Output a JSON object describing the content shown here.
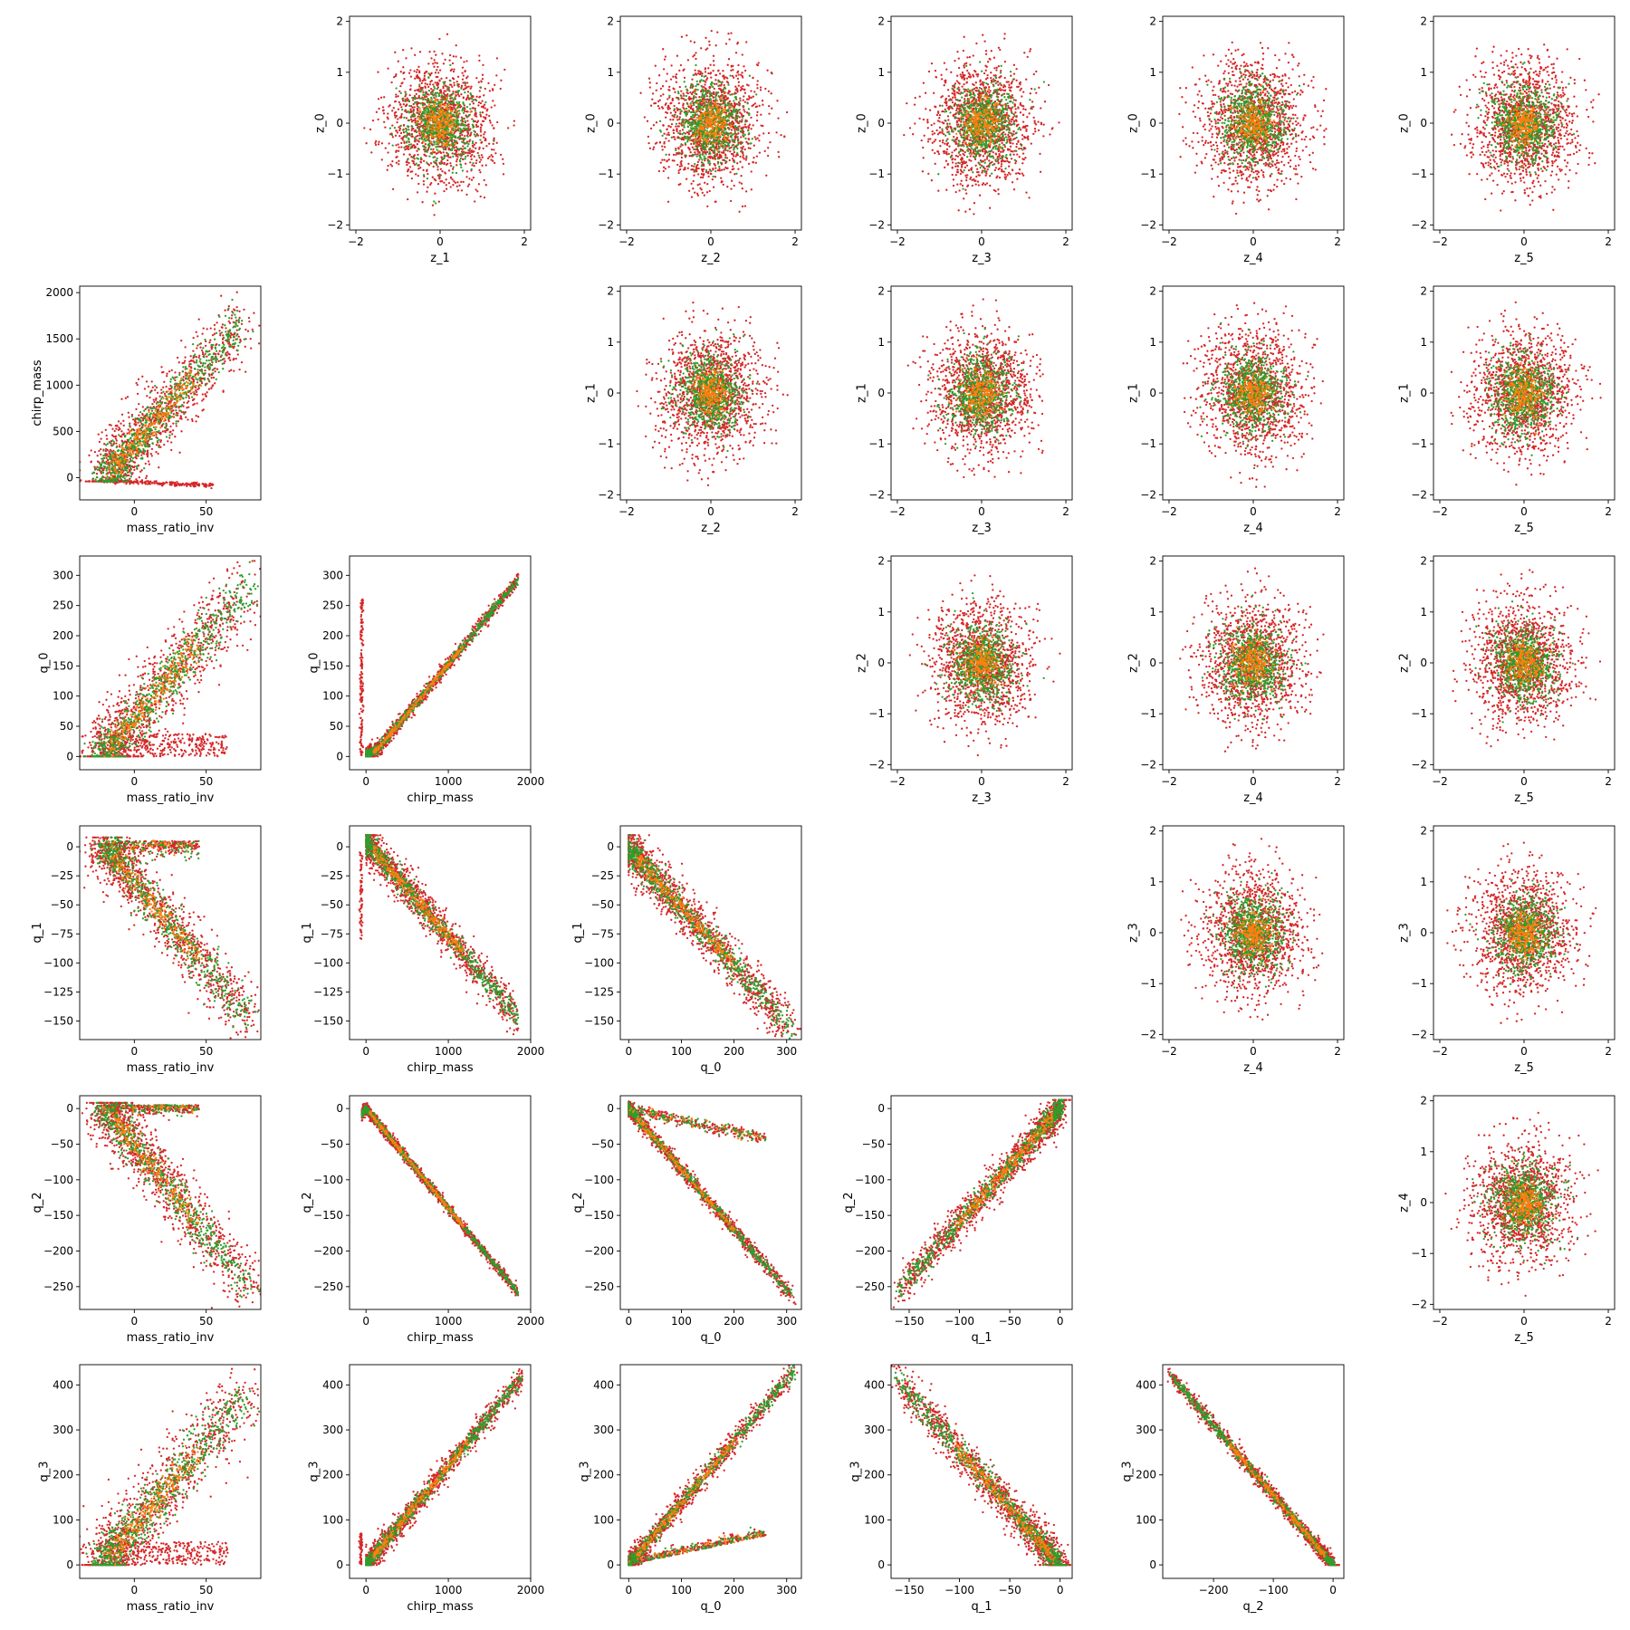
{
  "colors": {
    "red": "#d62728",
    "green": "#2ca02c",
    "orange": "#ff7f0e"
  },
  "series": [
    {
      "color": "#d62728"
    },
    {
      "color": "#2ca02c"
    },
    {
      "color": "#ff7f0e"
    }
  ],
  "chart_data": [
    {
      "type": "scatter",
      "row": 0,
      "col": 1,
      "xlabel": "z_1",
      "ylabel": "z_0",
      "kind": "circle",
      "xlim": [
        -2.15,
        2.15
      ],
      "ylim": [
        -2.1,
        2.1
      ],
      "xticks": [
        -2,
        0,
        2
      ],
      "yticks": [
        -2,
        -1,
        0,
        1,
        2
      ]
    },
    {
      "type": "scatter",
      "row": 0,
      "col": 2,
      "xlabel": "z_2",
      "ylabel": "z_0",
      "kind": "circle",
      "xlim": [
        -2.15,
        2.15
      ],
      "ylim": [
        -2.1,
        2.1
      ],
      "xticks": [
        -2,
        0,
        2
      ],
      "yticks": [
        -2,
        -1,
        0,
        1,
        2
      ]
    },
    {
      "type": "scatter",
      "row": 0,
      "col": 3,
      "xlabel": "z_3",
      "ylabel": "z_0",
      "kind": "circle",
      "xlim": [
        -2.15,
        2.15
      ],
      "ylim": [
        -2.1,
        2.1
      ],
      "xticks": [
        -2,
        0,
        2
      ],
      "yticks": [
        -2,
        -1,
        0,
        1,
        2
      ]
    },
    {
      "type": "scatter",
      "row": 0,
      "col": 4,
      "xlabel": "z_4",
      "ylabel": "z_0",
      "kind": "circle",
      "xlim": [
        -2.15,
        2.15
      ],
      "ylim": [
        -2.1,
        2.1
      ],
      "xticks": [
        -2,
        0,
        2
      ],
      "yticks": [
        -2,
        -1,
        0,
        1,
        2
      ]
    },
    {
      "type": "scatter",
      "row": 0,
      "col": 5,
      "xlabel": "z_5",
      "ylabel": "z_0",
      "kind": "circle",
      "xlim": [
        -2.15,
        2.15
      ],
      "ylim": [
        -2.1,
        2.1
      ],
      "xticks": [
        -2,
        0,
        2
      ],
      "yticks": [
        -2,
        -1,
        0,
        1,
        2
      ]
    },
    {
      "type": "scatter",
      "row": 1,
      "col": 0,
      "xlabel": "mass_ratio_inv",
      "ylabel": "chirp_mass",
      "kind": "mr_chirp",
      "xlim": [
        -38,
        88
      ],
      "ylim": [
        -240,
        2070
      ],
      "xticks": [
        0,
        50
      ],
      "yticks": [
        0,
        500,
        1000,
        1500,
        2000
      ]
    },
    {
      "type": "scatter",
      "row": 1,
      "col": 2,
      "xlabel": "z_2",
      "ylabel": "z_1",
      "kind": "circle",
      "xlim": [
        -2.15,
        2.15
      ],
      "ylim": [
        -2.1,
        2.1
      ],
      "xticks": [
        -2,
        0,
        2
      ],
      "yticks": [
        -2,
        -1,
        0,
        1,
        2
      ]
    },
    {
      "type": "scatter",
      "row": 1,
      "col": 3,
      "xlabel": "z_3",
      "ylabel": "z_1",
      "kind": "circle",
      "xlim": [
        -2.15,
        2.15
      ],
      "ylim": [
        -2.1,
        2.1
      ],
      "xticks": [
        -2,
        0,
        2
      ],
      "yticks": [
        -2,
        -1,
        0,
        1,
        2
      ]
    },
    {
      "type": "scatter",
      "row": 1,
      "col": 4,
      "xlabel": "z_4",
      "ylabel": "z_1",
      "kind": "circle",
      "xlim": [
        -2.15,
        2.15
      ],
      "ylim": [
        -2.1,
        2.1
      ],
      "xticks": [
        -2,
        0,
        2
      ],
      "yticks": [
        -2,
        -1,
        0,
        1,
        2
      ]
    },
    {
      "type": "scatter",
      "row": 1,
      "col": 5,
      "xlabel": "z_5",
      "ylabel": "z_1",
      "kind": "circle",
      "xlim": [
        -2.15,
        2.15
      ],
      "ylim": [
        -2.1,
        2.1
      ],
      "xticks": [
        -2,
        0,
        2
      ],
      "yticks": [
        -2,
        -1,
        0,
        1,
        2
      ]
    },
    {
      "type": "scatter",
      "row": 2,
      "col": 0,
      "xlabel": "mass_ratio_inv",
      "ylabel": "q_0",
      "kind": "mr_pos",
      "ymax": 313,
      "xlim": [
        -38,
        88
      ],
      "ylim": [
        -22,
        332
      ],
      "xticks": [
        0,
        50
      ],
      "yticks": [
        0,
        50,
        100,
        150,
        200,
        250,
        300
      ]
    },
    {
      "type": "scatter",
      "row": 2,
      "col": 1,
      "xlabel": "chirp_mass",
      "ylabel": "q_0",
      "kind": "chirp_v",
      "xlim": [
        -200,
        2000
      ],
      "ylim": [
        -22,
        332
      ],
      "xticks": [
        0,
        1000,
        2000
      ],
      "yticks": [
        0,
        50,
        100,
        150,
        200,
        250,
        300
      ]
    },
    {
      "type": "scatter",
      "row": 2,
      "col": 3,
      "xlabel": "z_3",
      "ylabel": "z_2",
      "kind": "circle",
      "xlim": [
        -2.15,
        2.15
      ],
      "ylim": [
        -2.1,
        2.1
      ],
      "xticks": [
        -2,
        0,
        2
      ],
      "yticks": [
        -2,
        -1,
        0,
        1,
        2
      ]
    },
    {
      "type": "scatter",
      "row": 2,
      "col": 4,
      "xlabel": "z_4",
      "ylabel": "z_2",
      "kind": "circle",
      "xlim": [
        -2.15,
        2.15
      ],
      "ylim": [
        -2.1,
        2.1
      ],
      "xticks": [
        -2,
        0,
        2
      ],
      "yticks": [
        -2,
        -1,
        0,
        1,
        2
      ]
    },
    {
      "type": "scatter",
      "row": 2,
      "col": 5,
      "xlabel": "z_5",
      "ylabel": "z_2",
      "kind": "circle",
      "xlim": [
        -2.15,
        2.15
      ],
      "ylim": [
        -2.1,
        2.1
      ],
      "xticks": [
        -2,
        0,
        2
      ],
      "yticks": [
        -2,
        -1,
        0,
        1,
        2
      ]
    },
    {
      "type": "scatter",
      "row": 3,
      "col": 0,
      "xlabel": "mass_ratio_inv",
      "ylabel": "q_1",
      "kind": "mr_neg",
      "ymin": -158,
      "xlim": [
        -38,
        88
      ],
      "ylim": [
        -166,
        18
      ],
      "xticks": [
        0,
        50
      ],
      "yticks": [
        -150,
        -125,
        -100,
        -75,
        -50,
        -25,
        0
      ]
    },
    {
      "type": "scatter",
      "row": 3,
      "col": 1,
      "xlabel": "chirp_mass",
      "ylabel": "q_1",
      "kind": "chirp_q1",
      "xlim": [
        -200,
        2000
      ],
      "ylim": [
        -166,
        18
      ],
      "xticks": [
        0,
        1000,
        2000
      ],
      "yticks": [
        -150,
        -125,
        -100,
        -75,
        -50,
        -25,
        0
      ]
    },
    {
      "type": "scatter",
      "row": 3,
      "col": 2,
      "xlabel": "q_0",
      "ylabel": "q_1",
      "kind": "q0_q1",
      "xlim": [
        -16,
        328
      ],
      "ylim": [
        -166,
        18
      ],
      "xticks": [
        0,
        100,
        200,
        300
      ],
      "yticks": [
        -150,
        -125,
        -100,
        -75,
        -50,
        -25,
        0
      ]
    },
    {
      "type": "scatter",
      "row": 3,
      "col": 4,
      "xlabel": "z_4",
      "ylabel": "z_3",
      "kind": "circle",
      "xlim": [
        -2.15,
        2.15
      ],
      "ylim": [
        -2.1,
        2.1
      ],
      "xticks": [
        -2,
        0,
        2
      ],
      "yticks": [
        -2,
        -1,
        0,
        1,
        2
      ]
    },
    {
      "type": "scatter",
      "row": 3,
      "col": 5,
      "xlabel": "z_5",
      "ylabel": "z_3",
      "kind": "circle",
      "xlim": [
        -2.15,
        2.15
      ],
      "ylim": [
        -2.1,
        2.1
      ],
      "xticks": [
        -2,
        0,
        2
      ],
      "yticks": [
        -2,
        -1,
        0,
        1,
        2
      ]
    },
    {
      "type": "scatter",
      "row": 4,
      "col": 0,
      "xlabel": "mass_ratio_inv",
      "ylabel": "q_2",
      "kind": "mr_neg",
      "ymin": -268,
      "xlim": [
        -38,
        88
      ],
      "ylim": [
        -282,
        18
      ],
      "xticks": [
        0,
        50
      ],
      "yticks": [
        -250,
        -200,
        -150,
        -100,
        -50,
        0
      ]
    },
    {
      "type": "scatter",
      "row": 4,
      "col": 1,
      "xlabel": "chirp_mass",
      "ylabel": "q_2",
      "kind": "chirp_q2",
      "xlim": [
        -200,
        2000
      ],
      "ylim": [
        -282,
        18
      ],
      "xticks": [
        0,
        1000,
        2000
      ],
      "yticks": [
        -250,
        -200,
        -150,
        -100,
        -50,
        0
      ]
    },
    {
      "type": "scatter",
      "row": 4,
      "col": 2,
      "xlabel": "q_0",
      "ylabel": "q_2",
      "kind": "q0_q2",
      "xlim": [
        -16,
        328
      ],
      "ylim": [
        -282,
        18
      ],
      "xticks": [
        0,
        100,
        200,
        300
      ],
      "yticks": [
        -250,
        -200,
        -150,
        -100,
        -50,
        0
      ]
    },
    {
      "type": "scatter",
      "row": 4,
      "col": 3,
      "xlabel": "q_1",
      "ylabel": "q_2",
      "kind": "q1_q2",
      "xlim": [
        -168,
        12
      ],
      "ylim": [
        -282,
        18
      ],
      "xticks": [
        -150,
        -100,
        -50,
        0
      ],
      "yticks": [
        -250,
        -200,
        -150,
        -100,
        -50,
        0
      ]
    },
    {
      "type": "scatter",
      "row": 4,
      "col": 5,
      "xlabel": "z_5",
      "ylabel": "z_4",
      "kind": "circle",
      "xlim": [
        -2.15,
        2.15
      ],
      "ylim": [
        -2.1,
        2.1
      ],
      "xticks": [
        -2,
        0,
        2
      ],
      "yticks": [
        -2,
        -1,
        0,
        1,
        2
      ]
    },
    {
      "type": "scatter",
      "row": 5,
      "col": 0,
      "xlabel": "mass_ratio_inv",
      "ylabel": "q_3",
      "kind": "mr_pos",
      "ymax": 425,
      "xlim": [
        -38,
        88
      ],
      "ylim": [
        -30,
        445
      ],
      "xticks": [
        0,
        50
      ],
      "yticks": [
        0,
        100,
        200,
        300,
        400
      ]
    },
    {
      "type": "scatter",
      "row": 5,
      "col": 1,
      "xlabel": "chirp_mass",
      "ylabel": "q_3",
      "kind": "chirp_q3",
      "xlim": [
        -200,
        2000
      ],
      "ylim": [
        -30,
        445
      ],
      "xticks": [
        0,
        1000,
        2000
      ],
      "yticks": [
        0,
        100,
        200,
        300,
        400
      ]
    },
    {
      "type": "scatter",
      "row": 5,
      "col": 2,
      "xlabel": "q_0",
      "ylabel": "q_3",
      "kind": "q0_q3",
      "xlim": [
        -16,
        328
      ],
      "ylim": [
        -30,
        445
      ],
      "xticks": [
        0,
        100,
        200,
        300
      ],
      "yticks": [
        0,
        100,
        200,
        300,
        400
      ]
    },
    {
      "type": "scatter",
      "row": 5,
      "col": 3,
      "xlabel": "q_1",
      "ylabel": "q_3",
      "kind": "q1_q3",
      "xlim": [
        -168,
        12
      ],
      "ylim": [
        -30,
        445
      ],
      "xticks": [
        -150,
        -100,
        -50,
        0
      ],
      "yticks": [
        0,
        100,
        200,
        300,
        400
      ]
    },
    {
      "type": "scatter",
      "row": 5,
      "col": 4,
      "xlabel": "q_2",
      "ylabel": "q_3",
      "kind": "q2_q3",
      "xlim": [
        -285,
        18
      ],
      "ylim": [
        -30,
        445
      ],
      "xticks": [
        -200,
        -100,
        0
      ],
      "yticks": [
        0,
        100,
        200,
        300,
        400
      ]
    }
  ]
}
